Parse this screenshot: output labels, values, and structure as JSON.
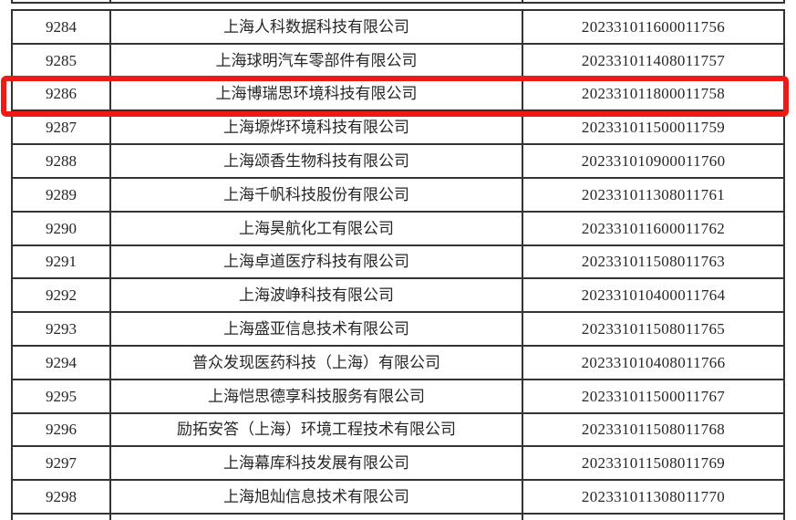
{
  "table": {
    "border_color": "#333333",
    "text_color": "#262626",
    "rows": [
      {
        "no": "9284",
        "company": "上海人科数据科技有限公司",
        "code": "202331011600011756"
      },
      {
        "no": "9285",
        "company": "上海球明汽车零部件有限公司",
        "code": "202331011408011757"
      },
      {
        "no": "9286",
        "company": "上海博瑞思环境科技有限公司",
        "code": "202331011800011758"
      },
      {
        "no": "9287",
        "company": "上海塬烨环境科技有限公司",
        "code": "202331011500011759"
      },
      {
        "no": "9288",
        "company": "上海颂香生物科技有限公司",
        "code": "202331010900011760"
      },
      {
        "no": "9289",
        "company": "上海千帆科技股份有限公司",
        "code": "202331011308011761"
      },
      {
        "no": "9290",
        "company": "上海昊航化工有限公司",
        "code": "202331011600011762"
      },
      {
        "no": "9291",
        "company": "上海卓道医疗科技有限公司",
        "code": "202331011508011763"
      },
      {
        "no": "9292",
        "company": "上海波峥科技有限公司",
        "code": "202331010400011764"
      },
      {
        "no": "9293",
        "company": "上海盛亚信息技术有限公司",
        "code": "202331011508011765"
      },
      {
        "no": "9294",
        "company": "普众发现医药科技（上海）有限公司",
        "code": "202331010408011766"
      },
      {
        "no": "9295",
        "company": "上海恺思德享科技服务有限公司",
        "code": "202331011500011767"
      },
      {
        "no": "9296",
        "company": "励拓安答（上海）环境工程技术有限公司",
        "code": "202331011508011768"
      },
      {
        "no": "9297",
        "company": "上海幕库科技发展有限公司",
        "code": "202331011508011769"
      },
      {
        "no": "9298",
        "company": "上海旭灿信息技术有限公司",
        "code": "202331011308011770"
      }
    ]
  },
  "highlight": {
    "row_no": "9286",
    "color": "#ee1a13"
  }
}
